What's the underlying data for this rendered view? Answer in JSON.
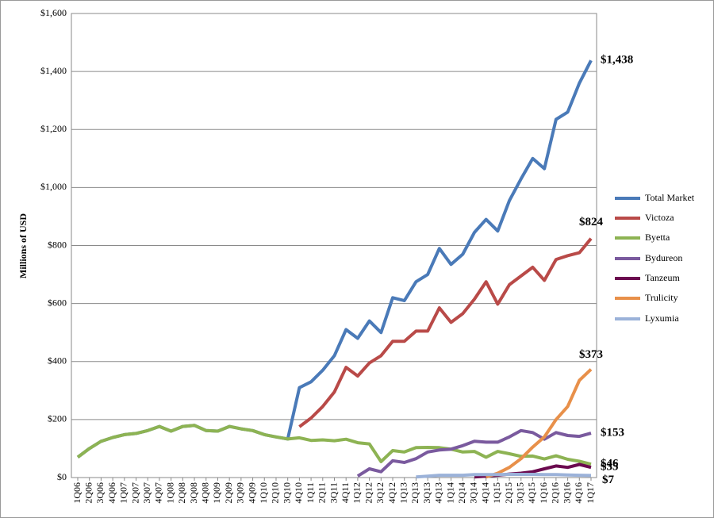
{
  "chart_data": {
    "type": "line",
    "y_axis_label": "Millions of USD",
    "categories": [
      "1Q06",
      "2Q06",
      "3Q06",
      "4Q06",
      "1Q07",
      "2Q07",
      "3Q07",
      "4Q07",
      "1Q08",
      "2Q08",
      "3Q08",
      "4Q08",
      "1Q09",
      "2Q09",
      "3Q09",
      "4Q09",
      "1Q10",
      "2Q10",
      "3Q10",
      "4Q10",
      "1Q11",
      "2Q11",
      "3Q11",
      "4Q11",
      "1Q12",
      "2Q12",
      "3Q12",
      "4Q12",
      "1Q13",
      "2Q13",
      "3Q13",
      "4Q13",
      "1Q14",
      "2Q14",
      "3Q14",
      "4Q14",
      "1Q15",
      "2Q15",
      "3Q15",
      "4Q15",
      "1Q16",
      "2Q16",
      "3Q16",
      "4Q16",
      "1Q17"
    ],
    "ylim": [
      0,
      1600
    ],
    "yticks": [
      {
        "value": 0,
        "label": "$0"
      },
      {
        "value": 200,
        "label": "$200"
      },
      {
        "value": 400,
        "label": "$400"
      },
      {
        "value": 600,
        "label": "$600"
      },
      {
        "value": 800,
        "label": "$800"
      },
      {
        "value": 1000,
        "label": "$1,000"
      },
      {
        "value": 1200,
        "label": "$1,200"
      },
      {
        "value": 1400,
        "label": "$1,400"
      },
      {
        "value": 1600,
        "label": "$1,600"
      }
    ],
    "grid": true,
    "legend": "right",
    "series": [
      {
        "name": "Total Market",
        "color": "#4a7ab8",
        "end_label": "$1,438",
        "values": [
          70,
          100,
          125,
          138,
          148,
          152,
          162,
          176,
          160,
          176,
          180,
          162,
          160,
          176,
          168,
          162,
          148,
          140,
          133,
          310,
          330,
          370,
          420,
          510,
          480,
          540,
          500,
          620,
          610,
          675,
          700,
          790,
          735,
          770,
          845,
          890,
          850,
          955,
          1030,
          1100,
          1065,
          1235,
          1260,
          1360,
          1438
        ]
      },
      {
        "name": "Victoza",
        "color": "#b94a48",
        "end_label": "$824",
        "values": [
          null,
          null,
          null,
          null,
          null,
          null,
          null,
          null,
          null,
          null,
          null,
          null,
          null,
          null,
          null,
          null,
          null,
          null,
          null,
          175,
          205,
          245,
          295,
          380,
          350,
          395,
          420,
          470,
          470,
          505,
          505,
          585,
          535,
          565,
          615,
          675,
          598,
          665,
          695,
          725,
          680,
          752,
          765,
          775,
          824
        ]
      },
      {
        "name": "Byetta",
        "color": "#8db353",
        "end_label": "$46",
        "values": [
          70,
          100,
          125,
          138,
          148,
          152,
          162,
          176,
          160,
          176,
          180,
          162,
          160,
          176,
          168,
          162,
          148,
          140,
          133,
          137,
          128,
          130,
          127,
          132,
          120,
          116,
          55,
          93,
          88,
          103,
          104,
          103,
          98,
          88,
          90,
          70,
          90,
          82,
          73,
          74,
          64,
          75,
          63,
          56,
          46
        ]
      },
      {
        "name": "Bydureon",
        "color": "#7a5a9e",
        "end_label": "$153",
        "values": [
          null,
          null,
          null,
          null,
          null,
          null,
          null,
          null,
          null,
          null,
          null,
          null,
          null,
          null,
          null,
          null,
          null,
          null,
          null,
          null,
          null,
          null,
          null,
          null,
          5,
          30,
          20,
          58,
          52,
          65,
          88,
          95,
          98,
          110,
          125,
          122,
          122,
          140,
          162,
          155,
          132,
          155,
          145,
          142,
          153
        ]
      },
      {
        "name": "Tanzeum",
        "color": "#6b0a4f",
        "end_label": "$35",
        "values": [
          null,
          null,
          null,
          null,
          null,
          null,
          null,
          null,
          null,
          null,
          null,
          null,
          null,
          null,
          null,
          null,
          null,
          null,
          null,
          null,
          null,
          null,
          null,
          null,
          null,
          null,
          null,
          null,
          null,
          null,
          null,
          null,
          null,
          null,
          2,
          5,
          8,
          12,
          15,
          20,
          30,
          40,
          35,
          45,
          35
        ]
      },
      {
        "name": "Trulicity",
        "color": "#e8904a",
        "end_label": "$373",
        "values": [
          null,
          null,
          null,
          null,
          null,
          null,
          null,
          null,
          null,
          null,
          null,
          null,
          null,
          null,
          null,
          null,
          null,
          null,
          null,
          null,
          null,
          null,
          null,
          null,
          null,
          null,
          null,
          null,
          null,
          null,
          null,
          null,
          null,
          null,
          null,
          2,
          15,
          35,
          65,
          105,
          140,
          200,
          245,
          335,
          373
        ]
      },
      {
        "name": "Lyxumia",
        "color": "#9bb2d9",
        "end_label": "$7",
        "values": [
          null,
          null,
          null,
          null,
          null,
          null,
          null,
          null,
          null,
          null,
          null,
          null,
          null,
          null,
          null,
          null,
          null,
          null,
          null,
          null,
          null,
          null,
          null,
          null,
          null,
          null,
          null,
          null,
          null,
          2,
          5,
          8,
          8,
          8,
          10,
          10,
          10,
          11,
          11,
          11,
          10,
          10,
          9,
          8,
          7
        ]
      }
    ]
  }
}
